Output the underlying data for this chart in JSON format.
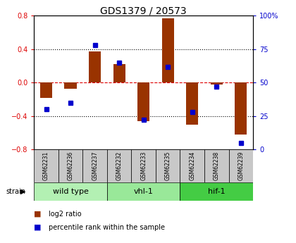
{
  "title": "GDS1379 / 20573",
  "samples": [
    "GSM62231",
    "GSM62236",
    "GSM62237",
    "GSM62232",
    "GSM62233",
    "GSM62235",
    "GSM62234",
    "GSM62238",
    "GSM62239"
  ],
  "log2_ratio": [
    -0.18,
    -0.07,
    0.37,
    0.22,
    -0.46,
    0.77,
    -0.5,
    -0.02,
    -0.62
  ],
  "percentile_rank": [
    30,
    35,
    78,
    65,
    22,
    62,
    28,
    47,
    5
  ],
  "groups": [
    {
      "label": "wild type",
      "start": 0,
      "end": 2,
      "color": "#b3f0b3"
    },
    {
      "label": "vhl-1",
      "start": 3,
      "end": 5,
      "color": "#99e899"
    },
    {
      "label": "hif-1",
      "start": 6,
      "end": 8,
      "color": "#44cc44"
    }
  ],
  "ylim_left": [
    -0.8,
    0.8
  ],
  "ylim_right": [
    0,
    100
  ],
  "yticks_left": [
    -0.8,
    -0.4,
    0.0,
    0.4,
    0.8
  ],
  "yticks_right": [
    0,
    25,
    50,
    75,
    100
  ],
  "bar_color": "#993300",
  "dot_color": "#0000cc",
  "zero_line_color": "#dd0000",
  "grid_color": "#000000",
  "legend_bar_label": "log2 ratio",
  "legend_dot_label": "percentile rank within the sample",
  "strain_label": "strain",
  "bar_width": 0.5,
  "dot_size": 4,
  "title_fontsize": 10,
  "tick_fontsize": 7,
  "label_fontsize": 5.5,
  "group_fontsize": 8,
  "legend_fontsize": 7
}
